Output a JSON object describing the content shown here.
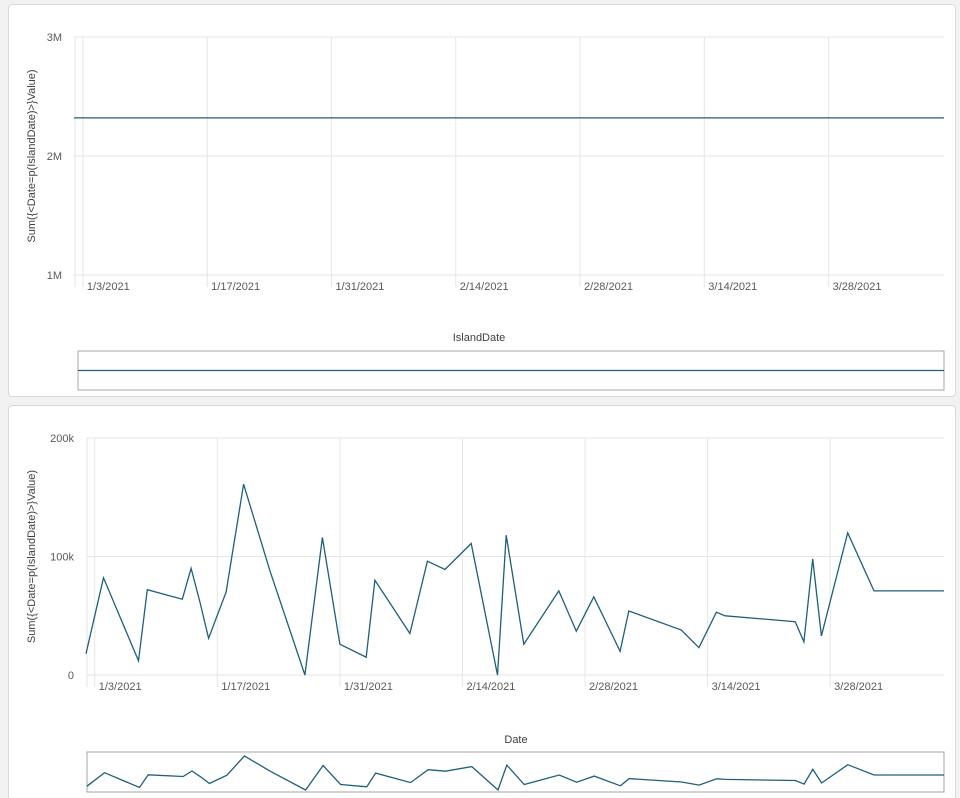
{
  "chart_data": [
    {
      "type": "line",
      "ylabel": "Sum({<Date=p(IslandDate)>}Value)",
      "xlabel": "IslandDate",
      "ylim": [
        1000000,
        3000000
      ],
      "yticks": [
        "3M",
        "2M",
        "1M"
      ],
      "ytick_values": [
        3000000,
        2000000,
        1000000
      ],
      "xticks": [
        "1/3/2021",
        "1/17/2021",
        "1/31/2021",
        "2/14/2021",
        "2/28/2021",
        "3/14/2021",
        "3/28/2021"
      ],
      "xlim": [
        "2021-01-02",
        "2021-04-10"
      ],
      "grid": true,
      "mini_chart": true,
      "series": [
        {
          "x": [
            "2021-01-02",
            "2021-04-10"
          ],
          "values": [
            2320000,
            2320000
          ]
        }
      ]
    },
    {
      "type": "line",
      "ylabel": "Sum({<Date=p(IslandDate)>}Value)",
      "xlabel": "Date",
      "ylim": [
        0,
        200000
      ],
      "yticks": [
        "200k",
        "100k",
        "0"
      ],
      "ytick_values": [
        200000,
        100000,
        0
      ],
      "xticks": [
        "1/3/2021",
        "1/17/2021",
        "1/31/2021",
        "2/14/2021",
        "2/28/2021",
        "3/14/2021",
        "3/28/2021"
      ],
      "xlim": [
        "2021-01-02",
        "2021-04-10"
      ],
      "grid": true,
      "mini_chart": true,
      "series": [
        {
          "x": [
            "2021-01-02",
            "2021-01-04",
            "2021-01-08",
            "2021-01-09",
            "2021-01-13",
            "2021-01-14",
            "2021-01-15",
            "2021-01-16",
            "2021-01-18",
            "2021-01-20",
            "2021-01-23",
            "2021-01-27",
            "2021-01-29",
            "2021-01-31",
            "2021-02-03",
            "2021-02-04",
            "2021-02-08",
            "2021-02-10",
            "2021-02-12",
            "2021-02-15",
            "2021-02-18",
            "2021-02-19",
            "2021-02-21",
            "2021-02-25",
            "2021-02-27",
            "2021-03-01",
            "2021-03-04",
            "2021-03-05",
            "2021-03-11",
            "2021-03-13",
            "2021-03-15",
            "2021-03-16",
            "2021-03-24",
            "2021-03-25",
            "2021-03-26",
            "2021-03-27",
            "2021-03-30",
            "2021-04-02",
            "2021-04-06",
            "2021-04-09",
            "2021-04-10"
          ],
          "values": [
            18000,
            82000,
            12000,
            72000,
            64000,
            90000,
            62000,
            31000,
            70000,
            161000,
            88000,
            0,
            116000,
            26000,
            15000,
            80000,
            35000,
            96000,
            89000,
            111000,
            0,
            118000,
            26000,
            71000,
            37000,
            66000,
            20000,
            54000,
            38000,
            23000,
            53000,
            50000,
            45000,
            28000,
            98000,
            33000,
            120000,
            71000,
            71000,
            71000,
            71000
          ]
        }
      ]
    }
  ]
}
